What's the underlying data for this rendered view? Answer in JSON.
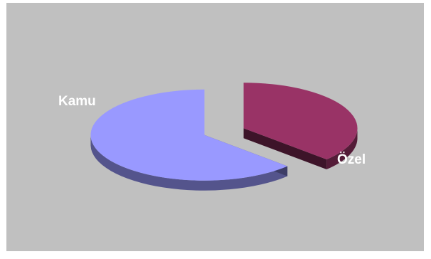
{
  "chart_data": {
    "type": "pie",
    "style": "3d-exploded",
    "title": "",
    "slices": [
      {
        "label": "Kamu",
        "value": 37,
        "color": "#993366"
      },
      {
        "label": "Özel",
        "value": 63,
        "color": "#9999ff"
      }
    ],
    "legend": "none",
    "background": "#c0c0c0"
  }
}
